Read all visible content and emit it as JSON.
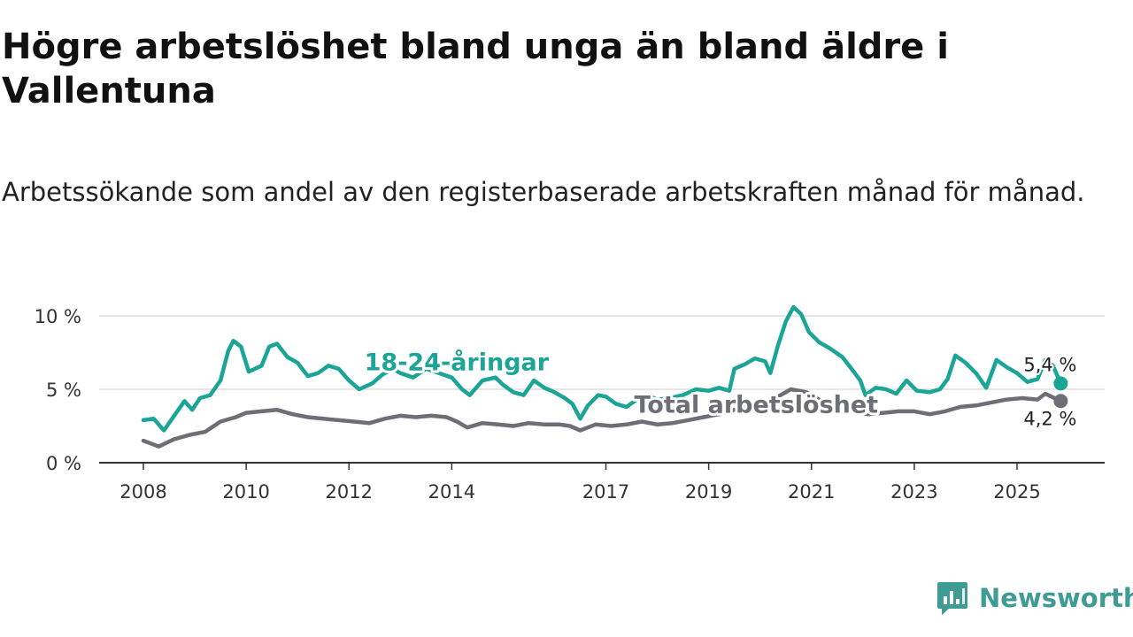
{
  "header": {
    "title": "Högre arbetslöshet bland unga än bland äldre i Vallentuna",
    "subtitle": "Arbetssökande som andel av den registerbaserade arbetskraften månad för månad."
  },
  "brand": {
    "name": "Newsworthy",
    "color": "#3f9c94",
    "icon": "newsworthy-logo-icon"
  },
  "colors": {
    "young": "#1aa596",
    "total": "#6e6e76",
    "grid": "#dddddd",
    "axis": "#333333"
  },
  "chart_data": {
    "type": "line",
    "title": "Högre arbetslöshet bland unga än bland äldre i Vallentuna",
    "xlabel": "",
    "ylabel": "",
    "ylim": [
      0,
      10
    ],
    "xlim": [
      2008,
      2026.1
    ],
    "yticks": [
      {
        "value": 0,
        "label": "0 %"
      },
      {
        "value": 5,
        "label": "5 %"
      },
      {
        "value": 10,
        "label": "10 %"
      }
    ],
    "xticks": [
      {
        "value": 2008,
        "label": "2008"
      },
      {
        "value": 2010,
        "label": "2010"
      },
      {
        "value": 2012,
        "label": "2012"
      },
      {
        "value": 2014,
        "label": "2014"
      },
      {
        "value": 2017,
        "label": "2017"
      },
      {
        "value": 2019,
        "label": "2019"
      },
      {
        "value": 2021,
        "label": "2021"
      },
      {
        "value": 2023,
        "label": "2023"
      },
      {
        "value": 2025,
        "label": "2025"
      }
    ],
    "series": [
      {
        "name": "18-24-åringar",
        "color": "#1aa596",
        "end_label": "5,4 %",
        "points": [
          [
            2008.0,
            2.9
          ],
          [
            2008.2,
            3.0
          ],
          [
            2008.4,
            2.2
          ],
          [
            2008.6,
            3.2
          ],
          [
            2008.8,
            4.2
          ],
          [
            2008.95,
            3.6
          ],
          [
            2009.1,
            4.4
          ],
          [
            2009.3,
            4.6
          ],
          [
            2009.5,
            5.6
          ],
          [
            2009.65,
            7.6
          ],
          [
            2009.75,
            8.3
          ],
          [
            2009.9,
            7.9
          ],
          [
            2010.05,
            6.2
          ],
          [
            2010.3,
            6.6
          ],
          [
            2010.45,
            7.9
          ],
          [
            2010.6,
            8.1
          ],
          [
            2010.8,
            7.2
          ],
          [
            2011.0,
            6.8
          ],
          [
            2011.2,
            5.9
          ],
          [
            2011.4,
            6.1
          ],
          [
            2011.6,
            6.6
          ],
          [
            2011.8,
            6.4
          ],
          [
            2012.0,
            5.6
          ],
          [
            2012.2,
            5.0
          ],
          [
            2012.45,
            5.4
          ],
          [
            2012.65,
            6.0
          ],
          [
            2012.85,
            6.4
          ],
          [
            2013.0,
            6.1
          ],
          [
            2013.25,
            5.8
          ],
          [
            2013.5,
            6.4
          ],
          [
            2013.75,
            6.1
          ],
          [
            2014.0,
            5.8
          ],
          [
            2014.2,
            5.0
          ],
          [
            2014.35,
            4.6
          ],
          [
            2014.6,
            5.6
          ],
          [
            2014.85,
            5.8
          ],
          [
            2015.0,
            5.3
          ],
          [
            2015.2,
            4.8
          ],
          [
            2015.4,
            4.6
          ],
          [
            2015.6,
            5.6
          ],
          [
            2015.8,
            5.1
          ],
          [
            2016.0,
            4.8
          ],
          [
            2016.2,
            4.4
          ],
          [
            2016.35,
            4.0
          ],
          [
            2016.5,
            3.0
          ],
          [
            2016.65,
            3.9
          ],
          [
            2016.85,
            4.6
          ],
          [
            2017.0,
            4.5
          ],
          [
            2017.2,
            4.0
          ],
          [
            2017.4,
            3.8
          ],
          [
            2017.6,
            4.3
          ],
          [
            2017.8,
            4.6
          ],
          [
            2018.0,
            4.3
          ],
          [
            2018.25,
            4.4
          ],
          [
            2018.5,
            4.6
          ],
          [
            2018.75,
            5.0
          ],
          [
            2019.0,
            4.9
          ],
          [
            2019.2,
            5.1
          ],
          [
            2019.4,
            4.9
          ],
          [
            2019.5,
            6.4
          ],
          [
            2019.7,
            6.7
          ],
          [
            2019.9,
            7.1
          ],
          [
            2020.1,
            6.9
          ],
          [
            2020.2,
            6.1
          ],
          [
            2020.35,
            8.0
          ],
          [
            2020.5,
            9.6
          ],
          [
            2020.65,
            10.6
          ],
          [
            2020.8,
            10.1
          ],
          [
            2020.95,
            8.9
          ],
          [
            2021.15,
            8.2
          ],
          [
            2021.35,
            7.8
          ],
          [
            2021.6,
            7.2
          ],
          [
            2021.8,
            6.3
          ],
          [
            2021.95,
            5.6
          ],
          [
            2022.05,
            4.6
          ],
          [
            2022.25,
            5.1
          ],
          [
            2022.45,
            5.0
          ],
          [
            2022.65,
            4.7
          ],
          [
            2022.85,
            5.6
          ],
          [
            2023.05,
            4.9
          ],
          [
            2023.3,
            4.8
          ],
          [
            2023.5,
            5.0
          ],
          [
            2023.65,
            5.7
          ],
          [
            2023.8,
            7.3
          ],
          [
            2024.0,
            6.8
          ],
          [
            2024.2,
            6.1
          ],
          [
            2024.4,
            5.1
          ],
          [
            2024.6,
            7.0
          ],
          [
            2024.8,
            6.5
          ],
          [
            2025.0,
            6.1
          ],
          [
            2025.2,
            5.5
          ],
          [
            2025.4,
            5.7
          ],
          [
            2025.55,
            7.0
          ],
          [
            2025.7,
            6.6
          ],
          [
            2025.85,
            5.4
          ]
        ]
      },
      {
        "name": "Total arbetslöshet",
        "color": "#6e6e76",
        "end_label": "4,2 %",
        "points": [
          [
            2008.0,
            1.5
          ],
          [
            2008.3,
            1.1
          ],
          [
            2008.6,
            1.6
          ],
          [
            2008.9,
            1.9
          ],
          [
            2009.2,
            2.1
          ],
          [
            2009.5,
            2.8
          ],
          [
            2009.8,
            3.1
          ],
          [
            2010.0,
            3.4
          ],
          [
            2010.3,
            3.5
          ],
          [
            2010.6,
            3.6
          ],
          [
            2010.9,
            3.3
          ],
          [
            2011.2,
            3.1
          ],
          [
            2011.5,
            3.0
          ],
          [
            2011.8,
            2.9
          ],
          [
            2012.1,
            2.8
          ],
          [
            2012.4,
            2.7
          ],
          [
            2012.7,
            3.0
          ],
          [
            2013.0,
            3.2
          ],
          [
            2013.3,
            3.1
          ],
          [
            2013.6,
            3.2
          ],
          [
            2013.9,
            3.1
          ],
          [
            2014.1,
            2.8
          ],
          [
            2014.3,
            2.4
          ],
          [
            2014.6,
            2.7
          ],
          [
            2014.9,
            2.6
          ],
          [
            2015.2,
            2.5
          ],
          [
            2015.5,
            2.7
          ],
          [
            2015.8,
            2.6
          ],
          [
            2016.1,
            2.6
          ],
          [
            2016.3,
            2.5
          ],
          [
            2016.5,
            2.2
          ],
          [
            2016.8,
            2.6
          ],
          [
            2017.1,
            2.5
          ],
          [
            2017.4,
            2.6
          ],
          [
            2017.7,
            2.8
          ],
          [
            2018.0,
            2.6
          ],
          [
            2018.3,
            2.7
          ],
          [
            2018.6,
            2.9
          ],
          [
            2018.9,
            3.1
          ],
          [
            2019.2,
            3.3
          ],
          [
            2019.5,
            3.6
          ],
          [
            2019.8,
            3.8
          ],
          [
            2020.1,
            4.0
          ],
          [
            2020.4,
            4.6
          ],
          [
            2020.6,
            5.0
          ],
          [
            2020.9,
            4.8
          ],
          [
            2021.2,
            4.2
          ],
          [
            2021.5,
            3.8
          ],
          [
            2021.8,
            3.5
          ],
          [
            2022.1,
            3.3
          ],
          [
            2022.4,
            3.4
          ],
          [
            2022.7,
            3.5
          ],
          [
            2023.0,
            3.5
          ],
          [
            2023.3,
            3.3
          ],
          [
            2023.6,
            3.5
          ],
          [
            2023.9,
            3.8
          ],
          [
            2024.2,
            3.9
          ],
          [
            2024.5,
            4.1
          ],
          [
            2024.8,
            4.3
          ],
          [
            2025.1,
            4.4
          ],
          [
            2025.4,
            4.3
          ],
          [
            2025.55,
            4.7
          ],
          [
            2025.85,
            4.2
          ]
        ]
      }
    ],
    "annotations": [
      {
        "series": "18-24-åringar",
        "text": "18-24-åringar",
        "x": 2012.3,
        "y": 6.3
      },
      {
        "series": "Total arbetslöshet",
        "text": "Total arbetslöshet",
        "x": 2017.55,
        "y": 3.4
      }
    ]
  }
}
